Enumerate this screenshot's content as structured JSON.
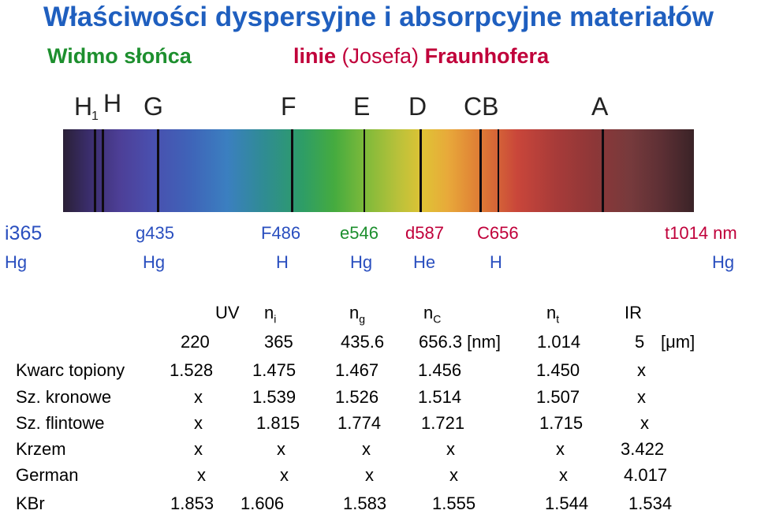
{
  "title": "Właściwości dyspersyjne i absorpcyjne materiałów",
  "subtitle_left": "Widmo słońca",
  "subtitle_right": {
    "bold1": "linie",
    "middle": " (Josefa) ",
    "bold2": "Fraunhofera"
  },
  "fraunhofer_letters": {
    "h1": "H",
    "h1_sub": "1",
    "h": "H",
    "g": "G",
    "f": "F",
    "e": "E",
    "d": "D",
    "cb": "CB",
    "a": "A"
  },
  "colors": {
    "title": "#1f5fbf",
    "subtitle_left": "#1d8f2e",
    "subtitle_right": "#c0003a"
  },
  "spectral_lines": {
    "row1": [
      "i365",
      "g435",
      "F486",
      "e546",
      "d587",
      "C656",
      "t1014 nm"
    ],
    "row2": [
      "Hg",
      "Hg",
      "H",
      "Hg",
      "He",
      "H",
      "Hg"
    ]
  },
  "table": {
    "header1": {
      "uv": "UV",
      "n_i": "n",
      "n_i_sub": "i",
      "n_g": "n",
      "n_g_sub": "g",
      "n_c": "n",
      "n_c_sub": "C",
      "n_t": "n",
      "n_t_sub": "t",
      "ir": "IR"
    },
    "header2": [
      "220",
      "365",
      "435.6",
      "656.3 [nm]",
      "1.014",
      "5",
      "[μm]"
    ],
    "rows": [
      {
        "name": "Kwarc topiony",
        "values": [
          "1.528",
          "1.475",
          "1.467",
          "1.456",
          "1.450",
          "x"
        ]
      },
      {
        "name": "Sz. kronowe",
        "values": [
          "x",
          "1.539",
          "1.526",
          "1.514",
          "1.507",
          "x"
        ]
      },
      {
        "name": "Sz. flintowe",
        "values": [
          "x",
          "1.815",
          "1.774",
          "1.721",
          "1.715",
          "x"
        ]
      },
      {
        "name": "Krzem",
        "values": [
          "x",
          "x",
          "x",
          "x",
          "x",
          "3.422"
        ]
      },
      {
        "name": "German",
        "values": [
          "x",
          "x",
          "x",
          "x",
          "x",
          "4.017"
        ]
      },
      {
        "name": "KBr",
        "values": [
          "1.853",
          "1.606",
          "1.583",
          "1.555",
          "1.544",
          "1.534"
        ]
      }
    ]
  }
}
